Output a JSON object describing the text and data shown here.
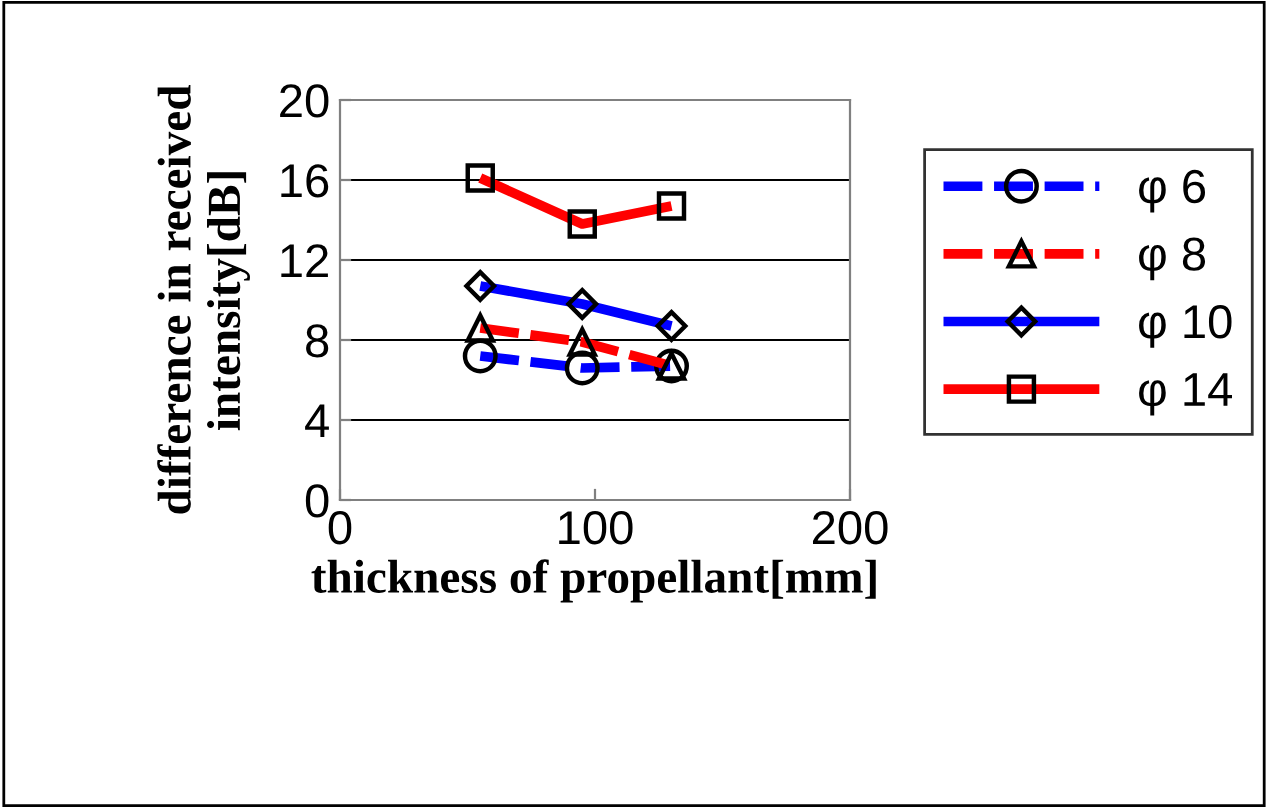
{
  "chart_data": {
    "type": "line",
    "xlabel": "thickness of propellant[mm]",
    "ylabel": "difference in received\nintensity[dB]",
    "xlim": [
      0,
      200
    ],
    "xticks": [
      0,
      100,
      200
    ],
    "ylim": [
      0,
      20
    ],
    "yticks": [
      0,
      4,
      8,
      12,
      16,
      20
    ],
    "grid": "y",
    "legend": "right",
    "series": [
      {
        "name": "φ 6",
        "color": "#0000ff",
        "marker": "circle",
        "line_style": "dashed",
        "x": [
          55,
          95,
          130
        ],
        "values": [
          7.2,
          6.6,
          6.7
        ]
      },
      {
        "name": "φ 8",
        "color": "#ff0000",
        "marker": "triangle",
        "line_style": "dashed",
        "x": [
          55,
          95,
          130
        ],
        "values": [
          8.6,
          7.9,
          6.7
        ]
      },
      {
        "name": "φ 10",
        "color": "#0000ff",
        "marker": "diamond",
        "line_style": "solid",
        "x": [
          55,
          95,
          130
        ],
        "values": [
          10.7,
          9.8,
          8.7
        ]
      },
      {
        "name": "φ 14",
        "color": "#ff0000",
        "marker": "square",
        "line_style": "solid",
        "x": [
          55,
          95,
          130
        ],
        "values": [
          16.1,
          13.8,
          14.7
        ]
      }
    ]
  }
}
